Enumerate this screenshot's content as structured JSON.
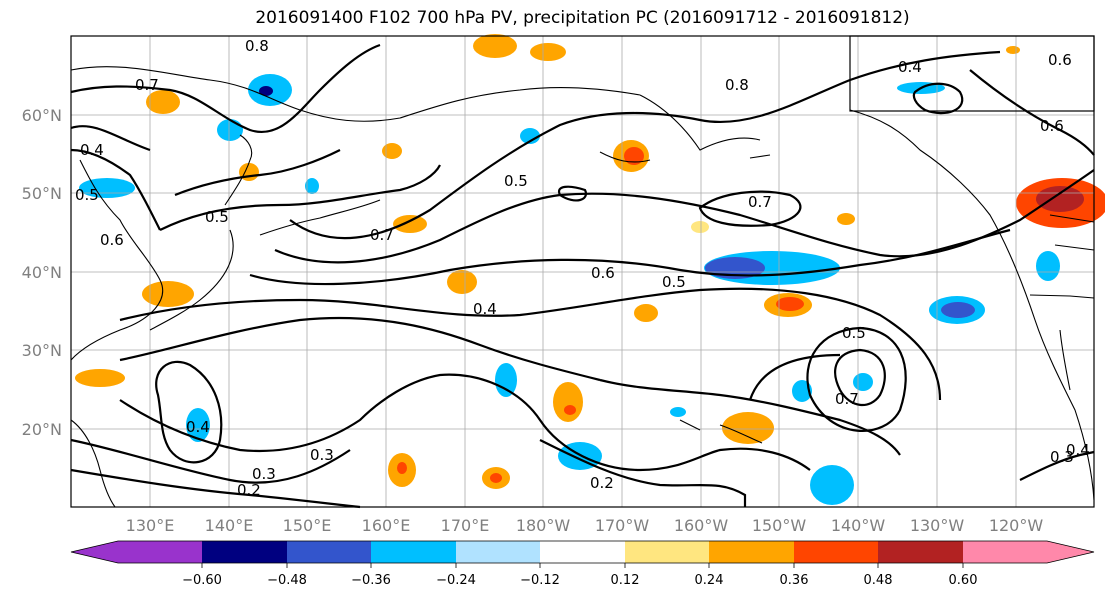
{
  "title": "2016091400 F102 700 hPa PV, precipitation PC (2016091712 - 2016091812)",
  "latitudes": [
    "60°N",
    "50°N",
    "40°N",
    "30°N",
    "20°N"
  ],
  "longitudes": [
    "130°E",
    "140°E",
    "150°E",
    "160°E",
    "170°E",
    "180°W",
    "170°W",
    "160°W",
    "150°W",
    "140°W",
    "130°W",
    "120°W"
  ],
  "colorbar": {
    "colors": [
      "#9933cc",
      "#000080",
      "#3355cc",
      "#00bfff",
      "#b0e2ff",
      "#ffffff",
      "#ffe680",
      "#ffa500",
      "#ff4500",
      "#b22222",
      "#ff88aa"
    ],
    "ticks": [
      "−0.60",
      "−0.48",
      "−0.36",
      "−0.24",
      "−0.12",
      "0.12",
      "0.24",
      "0.36",
      "0.48",
      "0.60"
    ]
  },
  "contour_labels": [
    "0.8",
    "0.7",
    "0.5",
    "0.4",
    "0.3",
    "0.4",
    "0.6",
    "0.5",
    "0.5",
    "0.7",
    "0.7",
    "0.6",
    "0.5",
    "0.4",
    "0.3",
    "0.2",
    "0.2",
    "0.5",
    "0.7",
    "0.4",
    "0.8",
    "0.6",
    "0.4",
    "0.3",
    "0.6"
  ]
}
